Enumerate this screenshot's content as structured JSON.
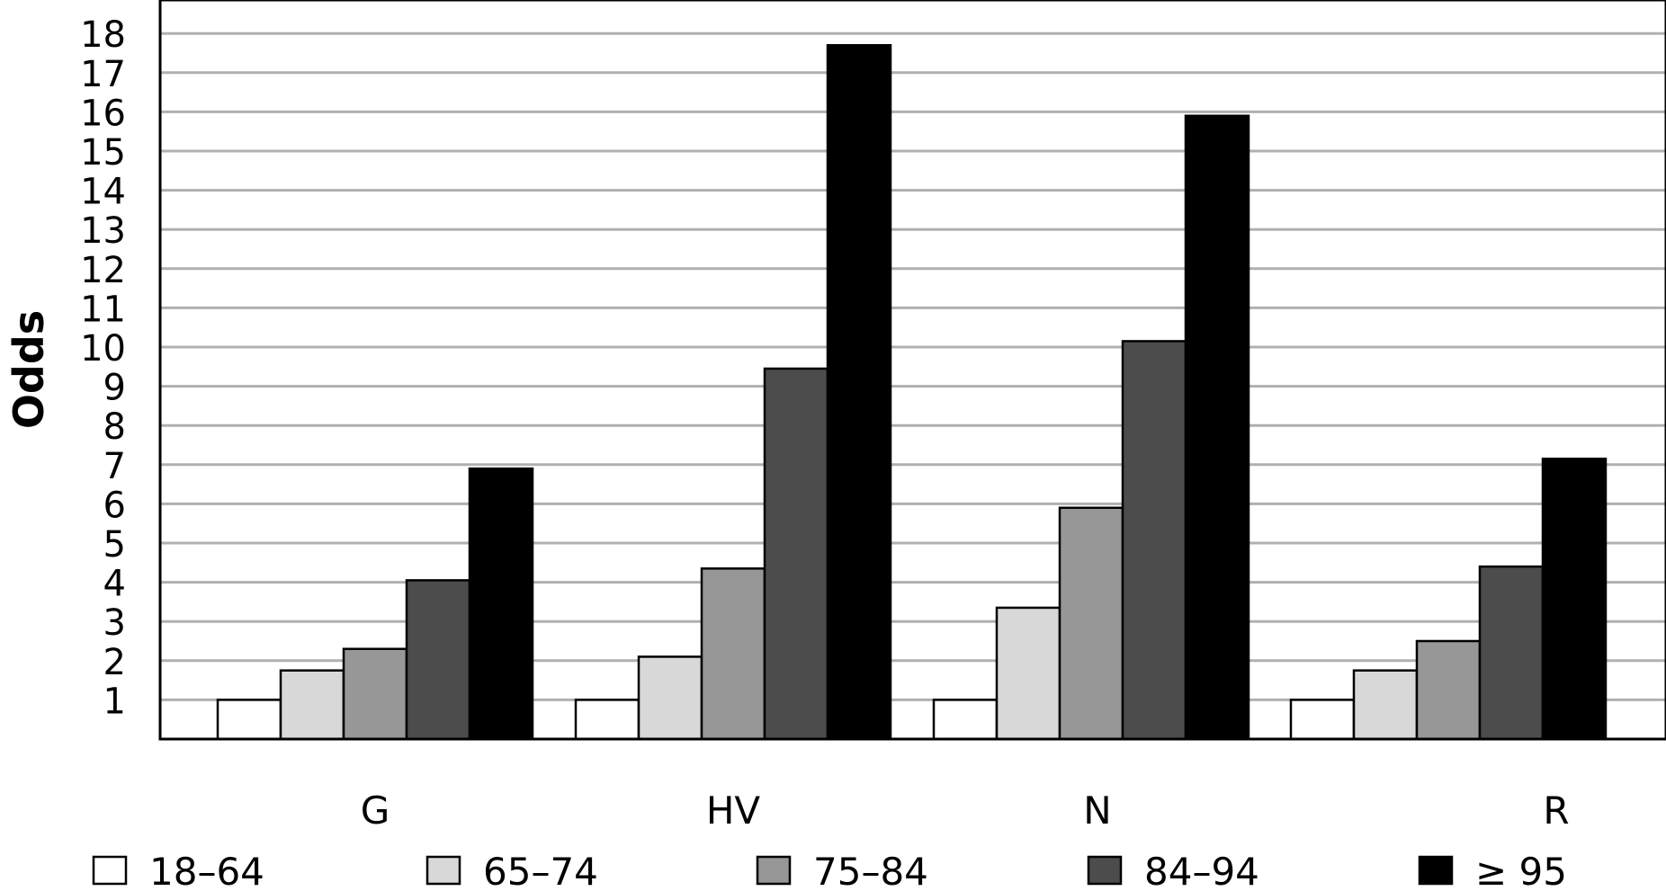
{
  "chart_data": {
    "type": "bar",
    "title": "",
    "xlabel": "",
    "ylabel": "Odds",
    "ylim": [
      0,
      18
    ],
    "yticks": [
      1,
      2,
      3,
      4,
      5,
      6,
      7,
      8,
      9,
      10,
      11,
      12,
      13,
      14,
      15,
      16,
      17,
      18
    ],
    "grid": true,
    "legend_position": "bottom",
    "categories": [
      "G",
      "HV",
      "N",
      "R"
    ],
    "series": [
      {
        "name": "18–64",
        "color": "#ffffff",
        "values": [
          1.0,
          1.0,
          1.0,
          1.0
        ]
      },
      {
        "name": "65–74",
        "color": "#d8d8d8",
        "values": [
          1.75,
          2.1,
          3.35,
          1.75
        ]
      },
      {
        "name": "75–84",
        "color": "#979797",
        "values": [
          2.3,
          4.35,
          5.9,
          2.5
        ]
      },
      {
        "name": "84–94",
        "color": "#4c4c4c",
        "values": [
          4.05,
          9.45,
          10.15,
          4.4
        ]
      },
      {
        "name": "≥ 95",
        "color": "#000000",
        "values": [
          6.9,
          17.7,
          15.9,
          7.15
        ]
      }
    ]
  }
}
